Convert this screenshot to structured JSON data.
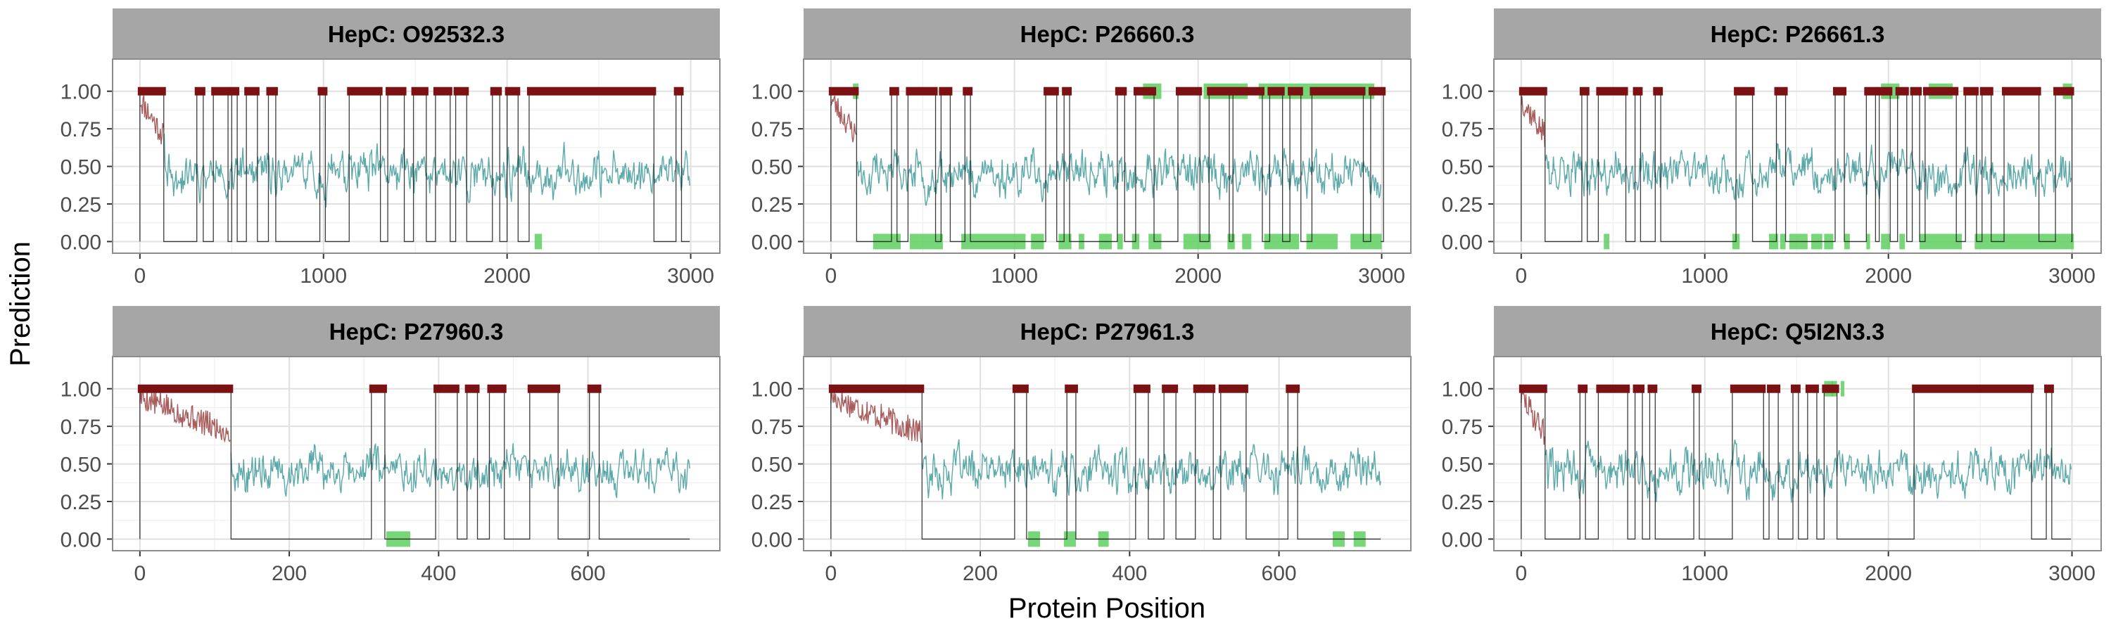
{
  "figure": {
    "xlabel": "Protein Position",
    "ylabel": "Prediction"
  },
  "colors": {
    "strip_bg": "#a6a6a6",
    "panel_border": "#8c8c8c",
    "grid_major": "#e0e0e0",
    "grid_minor": "#efefef",
    "prediction_high": "#9e4b4b",
    "prediction_low": "#3f9a9a",
    "binary_line": "#1a1a1a",
    "predicted_epitope": "#7b1113",
    "known_epitope": "#5fcf5f"
  },
  "chart_data": [
    {
      "type": "line",
      "title": "HepC: O92532.3",
      "xlim": [
        0,
        3010
      ],
      "ylim": [
        0,
        1
      ],
      "x_ticks": [
        0,
        1000,
        2000,
        3000
      ],
      "y_ticks": [
        "0.00",
        "0.25",
        "0.50",
        "0.75",
        "1.00"
      ],
      "predicted_regions": [
        [
          0,
          130
        ],
        [
          310,
          345
        ],
        [
          400,
          480
        ],
        [
          500,
          530
        ],
        [
          580,
          640
        ],
        [
          700,
          740
        ],
        [
          980,
          1010
        ],
        [
          1140,
          1310
        ],
        [
          1350,
          1440
        ],
        [
          1490,
          1560
        ],
        [
          1610,
          1690
        ],
        [
          1720,
          1780
        ],
        [
          1920,
          1960
        ],
        [
          2000,
          2060
        ],
        [
          2120,
          2800
        ],
        [
          2920,
          2950
        ]
      ],
      "known_regions": [
        [
          2150,
          2190
        ]
      ],
      "series": [
        {
          "seed": 11,
          "high_start_end": 130
        }
      ]
    },
    {
      "type": "line",
      "title": "HepC: P26660.3",
      "xlim": [
        0,
        3010
      ],
      "ylim": [
        0,
        1
      ],
      "x_ticks": [
        0,
        1000,
        2000,
        3000
      ],
      "y_ticks": [
        "0.00",
        "0.25",
        "0.50",
        "0.75",
        "1.00"
      ],
      "predicted_regions": [
        [
          0,
          140
        ],
        [
          330,
          360
        ],
        [
          420,
          570
        ],
        [
          600,
          650
        ],
        [
          730,
          760
        ],
        [
          1170,
          1230
        ],
        [
          1270,
          1300
        ],
        [
          1560,
          1600
        ],
        [
          1660,
          1760
        ],
        [
          1890,
          2010
        ],
        [
          2060,
          2170
        ],
        [
          2190,
          2350
        ],
        [
          2390,
          2460
        ],
        [
          2500,
          2560
        ],
        [
          2620,
          2900
        ],
        [
          2940,
          3010
        ]
      ],
      "known_regions": [
        [
          120,
          150
        ],
        [
          1700,
          1800
        ],
        [
          2030,
          2270
        ],
        [
          2330,
          2960
        ],
        [
          230,
          380
        ],
        [
          430,
          610
        ],
        [
          710,
          1060
        ],
        [
          1090,
          1160
        ],
        [
          1240,
          1310
        ],
        [
          1350,
          1380
        ],
        [
          1460,
          1530
        ],
        [
          1560,
          1590
        ],
        [
          1640,
          1680
        ],
        [
          1730,
          1800
        ],
        [
          1920,
          2070
        ],
        [
          2160,
          2200
        ],
        [
          2240,
          2290
        ],
        [
          2360,
          2550
        ],
        [
          2590,
          2760
        ],
        [
          2830,
          3000
        ]
      ],
      "known_top_count": 4,
      "series": [
        {
          "seed": 23,
          "high_start_end": 140
        }
      ]
    },
    {
      "type": "line",
      "title": "HepC: P26661.3",
      "xlim": [
        0,
        3010
      ],
      "ylim": [
        0,
        1
      ],
      "x_ticks": [
        0,
        1000,
        2000,
        3000
      ],
      "y_ticks": [
        "0.00",
        "0.25",
        "0.50",
        "0.75",
        "1.00"
      ],
      "predicted_regions": [
        [
          0,
          130
        ],
        [
          330,
          360
        ],
        [
          420,
          570
        ],
        [
          620,
          650
        ],
        [
          730,
          760
        ],
        [
          1170,
          1260
        ],
        [
          1390,
          1440
        ],
        [
          1710,
          1760
        ],
        [
          1880,
          1930
        ],
        [
          1950,
          2010
        ],
        [
          2050,
          2100
        ],
        [
          2130,
          2170
        ],
        [
          2200,
          2370
        ],
        [
          2420,
          2480
        ],
        [
          2510,
          2560
        ],
        [
          2630,
          2820
        ],
        [
          2910,
          3000
        ]
      ],
      "known_regions": [
        [
          1960,
          2060
        ],
        [
          2220,
          2350
        ],
        [
          2950,
          3000
        ],
        [
          450,
          480
        ],
        [
          1150,
          1190
        ],
        [
          1350,
          1400
        ],
        [
          1410,
          1440
        ],
        [
          1460,
          1560
        ],
        [
          1580,
          1640
        ],
        [
          1650,
          1700
        ],
        [
          1760,
          1790
        ],
        [
          1880,
          1900
        ],
        [
          1960,
          2010
        ],
        [
          2060,
          2090
        ],
        [
          2170,
          2400
        ],
        [
          2470,
          3010
        ]
      ],
      "known_top_count": 3,
      "series": [
        {
          "seed": 37,
          "high_start_end": 130
        }
      ]
    },
    {
      "type": "line",
      "title": "HepC: P27960.3",
      "xlim": [
        0,
        740
      ],
      "ylim": [
        0,
        1
      ],
      "x_ticks": [
        0,
        200,
        400,
        600
      ],
      "y_ticks": [
        "0.00",
        "0.25",
        "0.50",
        "0.75",
        "1.00"
      ],
      "predicted_regions": [
        [
          0,
          122
        ],
        [
          310,
          328
        ],
        [
          396,
          425
        ],
        [
          438,
          452
        ],
        [
          468,
          488
        ],
        [
          522,
          560
        ],
        [
          602,
          615
        ]
      ],
      "known_regions": [
        [
          330,
          362
        ]
      ],
      "series": [
        {
          "seed": 5,
          "high_start_end": 122
        }
      ]
    },
    {
      "type": "line",
      "title": "HepC: P27961.3",
      "xlim": [
        0,
        740
      ],
      "ylim": [
        0,
        1
      ],
      "x_ticks": [
        0,
        200,
        400,
        600
      ],
      "y_ticks": [
        "0.00",
        "0.25",
        "0.50",
        "0.75",
        "1.00"
      ],
      "predicted_regions": [
        [
          0,
          122
        ],
        [
          246,
          262
        ],
        [
          316,
          328
        ],
        [
          408,
          425
        ],
        [
          446,
          462
        ],
        [
          488,
          512
        ],
        [
          522,
          556
        ],
        [
          612,
          625
        ]
      ],
      "known_regions": [
        [
          264,
          280
        ],
        [
          312,
          328
        ],
        [
          358,
          372
        ],
        [
          672,
          688
        ],
        [
          700,
          716
        ]
      ],
      "series": [
        {
          "seed": 17,
          "high_start_end": 122
        }
      ]
    },
    {
      "type": "line",
      "title": "HepC: Q5I2N3.3",
      "xlim": [
        0,
        3010
      ],
      "ylim": [
        0,
        1
      ],
      "x_ticks": [
        0,
        1000,
        2000,
        3000
      ],
      "y_ticks": [
        "0.00",
        "0.25",
        "0.50",
        "0.75",
        "1.00"
      ],
      "predicted_regions": [
        [
          0,
          130
        ],
        [
          320,
          350
        ],
        [
          420,
          580
        ],
        [
          620,
          660
        ],
        [
          700,
          730
        ],
        [
          940,
          970
        ],
        [
          1150,
          1320
        ],
        [
          1350,
          1400
        ],
        [
          1480,
          1510
        ],
        [
          1560,
          1610
        ],
        [
          1650,
          1720
        ],
        [
          2140,
          2780
        ],
        [
          2860,
          2890
        ]
      ],
      "known_regions": [
        [
          1650,
          1700
        ],
        [
          1690,
          1720
        ],
        [
          1740,
          1760
        ]
      ],
      "known_top_count": 3,
      "series": [
        {
          "seed": 29,
          "high_start_end": 130
        }
      ]
    }
  ]
}
